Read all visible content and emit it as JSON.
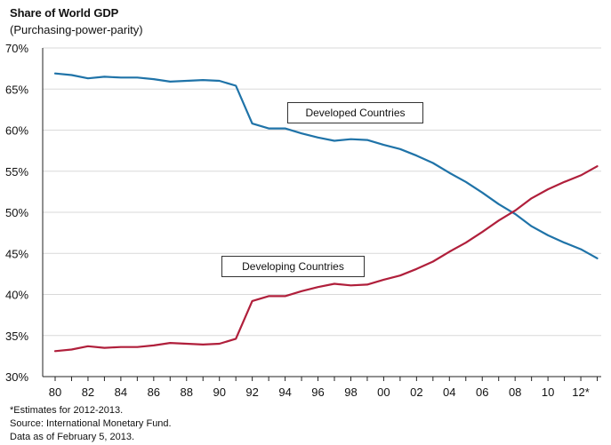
{
  "chart_data": {
    "type": "line",
    "title": "Share of World GDP",
    "subtitle": "(Purchasing-power-parity)",
    "ylim": [
      30,
      70
    ],
    "y_ticks": [
      "30%",
      "35%",
      "40%",
      "45%",
      "50%",
      "55%",
      "60%",
      "65%",
      "70%"
    ],
    "xlim": [
      1980,
      2013
    ],
    "x_tick_labels": [
      "80",
      "82",
      "84",
      "86",
      "88",
      "90",
      "92",
      "94",
      "96",
      "98",
      "00",
      "02",
      "04",
      "06",
      "08",
      "10",
      "12*"
    ],
    "grid": true,
    "x": [
      1980,
      1981,
      1982,
      1983,
      1984,
      1985,
      1986,
      1987,
      1988,
      1989,
      1990,
      1991,
      1992,
      1993,
      1994,
      1995,
      1996,
      1997,
      1998,
      1999,
      2000,
      2001,
      2002,
      2003,
      2004,
      2005,
      2006,
      2007,
      2008,
      2009,
      2010,
      2011,
      2012,
      2013
    ],
    "series": [
      {
        "name": "Developed Countries",
        "color": "#1f73a8",
        "values": [
          66.9,
          66.7,
          66.3,
          66.5,
          66.4,
          66.4,
          66.2,
          65.9,
          66.0,
          66.1,
          66.0,
          65.4,
          60.8,
          60.2,
          60.2,
          59.6,
          59.1,
          58.7,
          58.9,
          58.8,
          58.2,
          57.7,
          56.9,
          56.0,
          54.8,
          53.7,
          52.4,
          51.0,
          49.8,
          48.3,
          47.2,
          46.3,
          45.5,
          44.4
        ]
      },
      {
        "name": "Developing Countries",
        "color": "#b01f3b",
        "values": [
          33.1,
          33.3,
          33.7,
          33.5,
          33.6,
          33.6,
          33.8,
          34.1,
          34.0,
          33.9,
          34.0,
          34.6,
          39.2,
          39.8,
          39.8,
          40.4,
          40.9,
          41.3,
          41.1,
          41.2,
          41.8,
          42.3,
          43.1,
          44.0,
          45.2,
          46.3,
          47.6,
          49.0,
          50.2,
          51.7,
          52.8,
          53.7,
          54.5,
          55.6
        ]
      }
    ],
    "annotations": [
      "Developed Countries",
      "Developing Countries"
    ]
  },
  "notes": [
    "*Estimates for 2012-2013.",
    "Source: International Monetary Fund.",
    "Data as of February 5, 2013."
  ]
}
